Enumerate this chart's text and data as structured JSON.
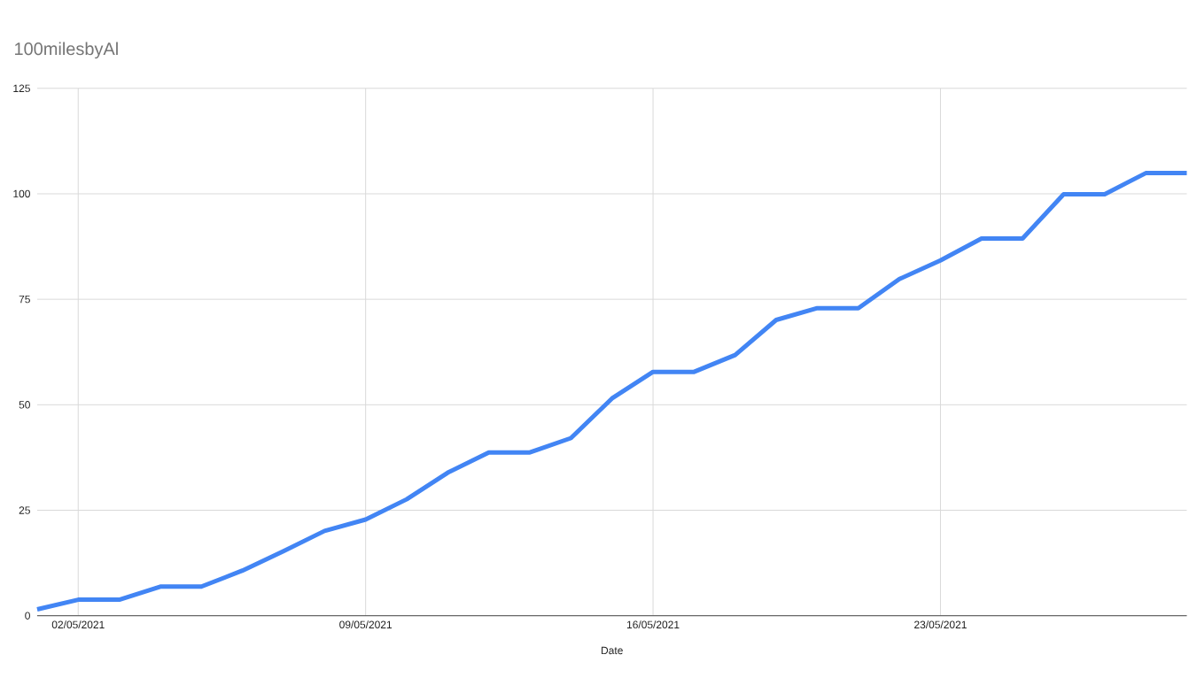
{
  "chart_data": {
    "type": "line",
    "title": "100milesbyAl",
    "xlabel": "Date",
    "x": [
      "2021-05-01",
      "2021-05-02",
      "2021-05-03",
      "2021-05-04",
      "2021-05-05",
      "2021-05-06",
      "2021-05-07",
      "2021-05-08",
      "2021-05-09",
      "2021-05-10",
      "2021-05-11",
      "2021-05-12",
      "2021-05-13",
      "2021-05-14",
      "2021-05-15",
      "2021-05-16",
      "2021-05-17",
      "2021-05-18",
      "2021-05-19",
      "2021-05-20",
      "2021-05-21",
      "2021-05-22",
      "2021-05-23",
      "2021-05-24",
      "2021-05-25",
      "2021-05-26",
      "2021-05-27",
      "2021-05-28",
      "2021-05-29"
    ],
    "series": [
      {
        "color": "#4285f4",
        "values": [
          1.5,
          3.8,
          3.8,
          6.9,
          6.9,
          10.7,
          15.3,
          20.1,
          22.8,
          27.6,
          33.9,
          38.7,
          38.7,
          42.1,
          51.5,
          57.8,
          57.8,
          61.8,
          70.1,
          72.9,
          72.9,
          79.8,
          84.2,
          89.4,
          89.4,
          99.9,
          99.9,
          104.9,
          104.9
        ]
      }
    ],
    "xlim": [
      "2021-05-01",
      "2021-05-29"
    ],
    "xticks": [
      {
        "value": "2021-05-02",
        "label": "02/05/2021"
      },
      {
        "value": "2021-05-09",
        "label": "09/05/2021"
      },
      {
        "value": "2021-05-16",
        "label": "16/05/2021"
      },
      {
        "value": "2021-05-23",
        "label": "23/05/2021"
      }
    ],
    "ylim": [
      0,
      125
    ],
    "yticks": [
      0,
      25,
      50,
      75,
      100,
      125
    ],
    "grid": true,
    "marker": "none",
    "line_style": "solid"
  }
}
